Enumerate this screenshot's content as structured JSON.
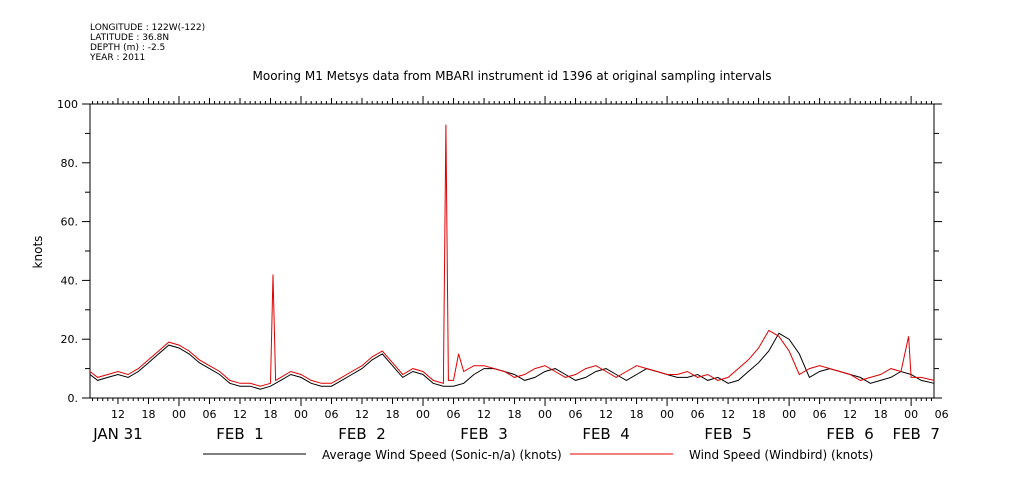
{
  "meta": {
    "longitude": "LONGITUDE : 122W(-122)",
    "latitude": "LATITUDE : 36.8N",
    "depth": "DEPTH (m) : -2.5",
    "year": "YEAR : 2011"
  },
  "colors": {
    "average": "#000000",
    "windbird": "#e00000"
  },
  "chart_data": {
    "type": "line",
    "title": "Mooring M1 Metsys data from MBARI instrument id 1396 at original sampling intervals",
    "ylabel": "knots",
    "xlabel": "",
    "ylim": [
      0,
      100
    ],
    "y_ticks": [
      "0.",
      "20.",
      "40.",
      "60.",
      "80.",
      "100"
    ],
    "x_range_hours": [
      6.5,
      172.5
    ],
    "x_hour_ticks": [
      {
        "h": 12,
        "label": "12"
      },
      {
        "h": 18,
        "label": "18"
      },
      {
        "h": 24,
        "label": "00"
      },
      {
        "h": 30,
        "label": "06"
      },
      {
        "h": 36,
        "label": "12"
      },
      {
        "h": 42,
        "label": "18"
      },
      {
        "h": 48,
        "label": "00"
      },
      {
        "h": 54,
        "label": "06"
      },
      {
        "h": 60,
        "label": "12"
      },
      {
        "h": 66,
        "label": "18"
      },
      {
        "h": 72,
        "label": "00"
      },
      {
        "h": 78,
        "label": "06"
      },
      {
        "h": 84,
        "label": "12"
      },
      {
        "h": 90,
        "label": "18"
      },
      {
        "h": 96,
        "label": "00"
      },
      {
        "h": 102,
        "label": "06"
      },
      {
        "h": 108,
        "label": "12"
      },
      {
        "h": 114,
        "label": "18"
      },
      {
        "h": 120,
        "label": "00"
      },
      {
        "h": 126,
        "label": "06"
      },
      {
        "h": 132,
        "label": "12"
      },
      {
        "h": 138,
        "label": "18"
      },
      {
        "h": 144,
        "label": "00"
      },
      {
        "h": 150,
        "label": "06"
      },
      {
        "h": 156,
        "label": "12"
      },
      {
        "h": 162,
        "label": "18"
      },
      {
        "h": 168,
        "label": "00"
      },
      {
        "h": 174,
        "label": "06"
      }
    ],
    "day_labels": [
      {
        "h": 12,
        "label": "JAN 31"
      },
      {
        "h": 36,
        "label": "FEB  1"
      },
      {
        "h": 60,
        "label": "FEB  2"
      },
      {
        "h": 84,
        "label": "FEB  3"
      },
      {
        "h": 108,
        "label": "FEB  4"
      },
      {
        "h": 132,
        "label": "FEB  5"
      },
      {
        "h": 156,
        "label": "FEB  6"
      },
      {
        "h": 169,
        "label": "FEB  7"
      }
    ],
    "series": [
      {
        "name": "Average Wind Speed (Sonic-n/a) (knots)",
        "x": [
          6.5,
          8,
          10,
          12,
          14,
          16,
          18,
          20,
          22,
          24,
          26,
          28,
          30,
          32,
          34,
          36,
          38,
          40,
          42,
          44,
          46,
          48,
          50,
          52,
          54,
          56,
          58,
          60,
          62,
          64,
          66,
          68,
          70,
          72,
          74,
          76,
          78,
          80,
          82,
          84,
          86,
          88,
          90,
          92,
          94,
          96,
          98,
          100,
          102,
          104,
          106,
          108,
          110,
          112,
          114,
          116,
          118,
          120,
          122,
          124,
          126,
          128,
          130,
          132,
          134,
          136,
          138,
          140,
          142,
          144,
          146,
          148,
          150,
          152,
          154,
          156,
          158,
          160,
          162,
          164,
          166,
          168,
          170,
          172.5
        ],
        "y": [
          8,
          6,
          7,
          8,
          7,
          9,
          12,
          15,
          18,
          17,
          15,
          12,
          10,
          8,
          5,
          4,
          4,
          3,
          4,
          6,
          8,
          7,
          5,
          4,
          4,
          6,
          8,
          10,
          13,
          15,
          11,
          7,
          9,
          8,
          5,
          4,
          4,
          5,
          8,
          10,
          10,
          9,
          8,
          6,
          7,
          9,
          10,
          8,
          6,
          7,
          9,
          10,
          8,
          6,
          8,
          10,
          9,
          8,
          7,
          7,
          8,
          6,
          7,
          5,
          6,
          9,
          12,
          16,
          22,
          20,
          15,
          7,
          9,
          10,
          9,
          8,
          7,
          5,
          6,
          7,
          9,
          8,
          6,
          5
        ]
      },
      {
        "name": "Wind Speed (Windbird) (knots)",
        "x": [
          6.5,
          8,
          10,
          12,
          14,
          16,
          18,
          20,
          22,
          24,
          26,
          28,
          30,
          32,
          34,
          36,
          38,
          40,
          42,
          42.5,
          43,
          44,
          46,
          48,
          50,
          52,
          54,
          56,
          58,
          60,
          62,
          64,
          66,
          68,
          70,
          72,
          74,
          76,
          76.5,
          77,
          78,
          79,
          80,
          82,
          84,
          86,
          88,
          90,
          92,
          94,
          96,
          98,
          100,
          102,
          104,
          106,
          108,
          110,
          112,
          114,
          116,
          118,
          120,
          122,
          124,
          126,
          128,
          130,
          132,
          134,
          136,
          138,
          140,
          142,
          144,
          146,
          148,
          150,
          152,
          154,
          156,
          158,
          160,
          162,
          164,
          166,
          167.5,
          168,
          170,
          172.5
        ],
        "y": [
          9,
          7,
          8,
          9,
          8,
          10,
          13,
          16,
          19,
          18,
          16,
          13,
          11,
          9,
          6,
          5,
          5,
          4,
          5,
          42,
          6,
          7,
          9,
          8,
          6,
          5,
          5,
          7,
          9,
          11,
          14,
          16,
          12,
          8,
          10,
          9,
          6,
          5,
          93,
          6,
          6,
          15,
          9,
          11,
          11,
          10,
          9,
          7,
          8,
          10,
          11,
          9,
          7,
          8,
          10,
          11,
          9,
          7,
          9,
          11,
          10,
          9,
          8,
          8,
          9,
          7,
          8,
          6,
          7,
          10,
          13,
          17,
          23,
          21,
          16,
          8,
          10,
          11,
          10,
          9,
          8,
          6,
          7,
          8,
          10,
          9,
          21,
          7,
          7,
          6
        ]
      }
    ],
    "legend": {
      "placement": "bottom",
      "items": [
        "Average Wind Speed (Sonic-n/a) (knots)",
        "Wind Speed (Windbird) (knots)"
      ]
    }
  }
}
